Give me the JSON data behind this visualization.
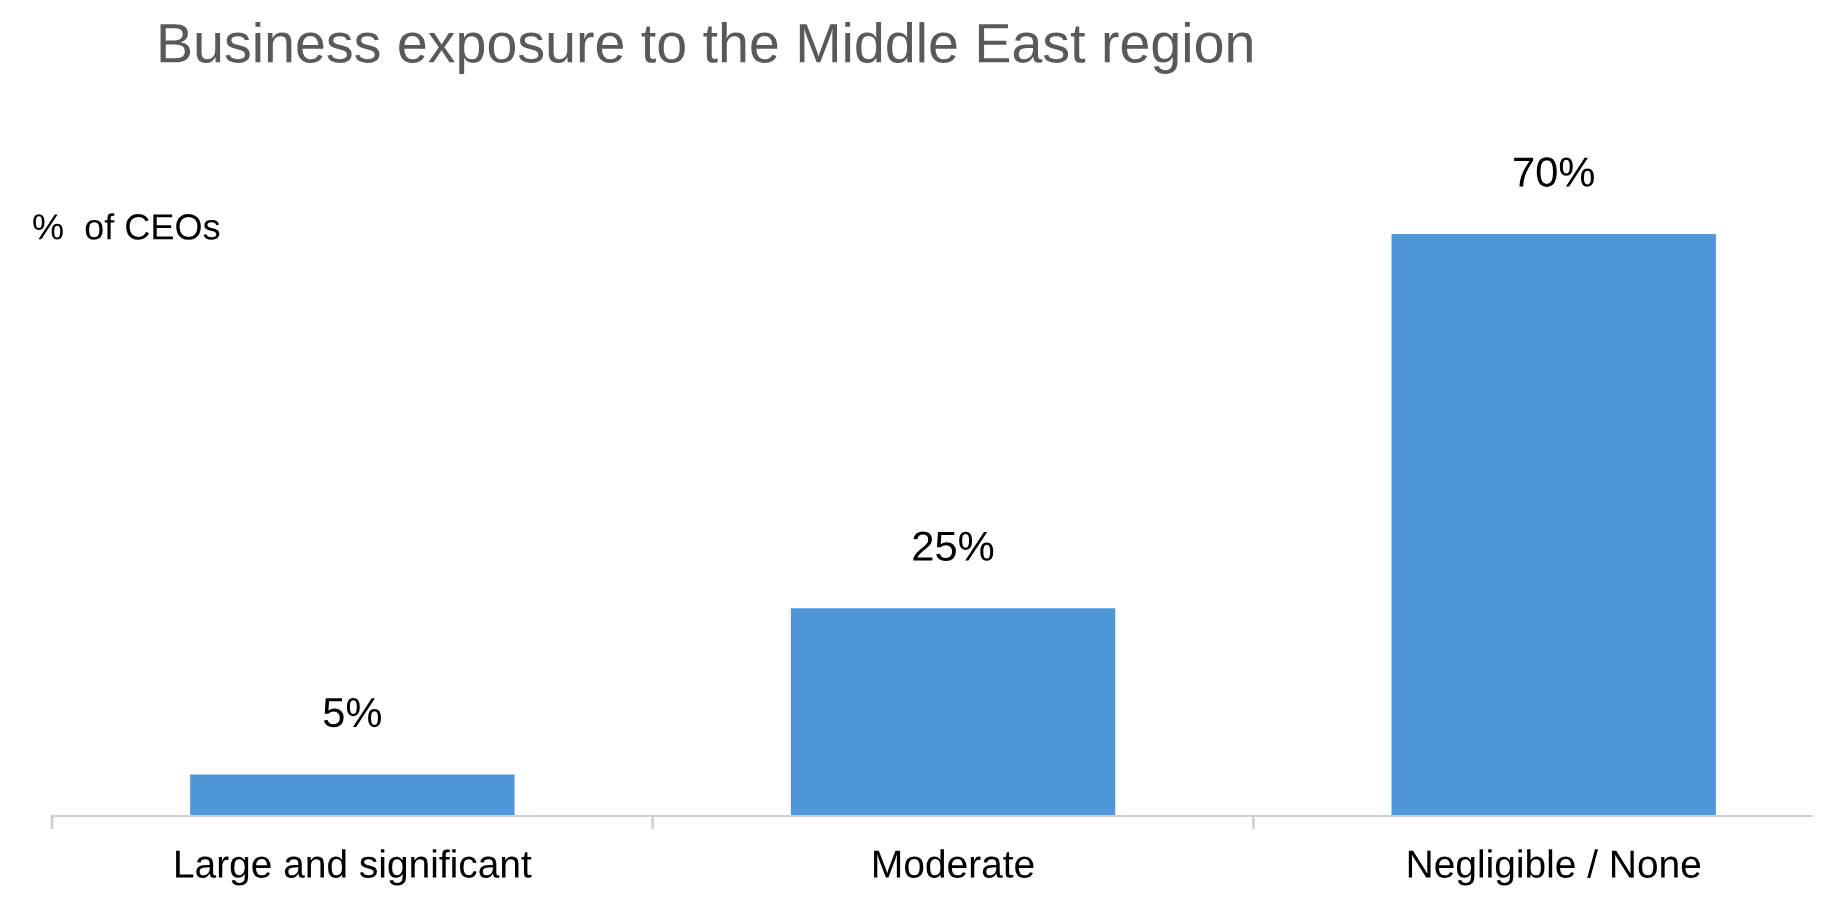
{
  "chart_data": {
    "type": "bar",
    "title": "Business exposure to the Middle East region",
    "ylabel": "%  of CEOs",
    "categories": [
      "Large and significant",
      "Moderate",
      "Negligible / None"
    ],
    "values": [
      5,
      25,
      70
    ],
    "value_labels": [
      "5%",
      "25%",
      "70%"
    ],
    "color": "#4f96d9",
    "grid": false,
    "legend": false
  }
}
